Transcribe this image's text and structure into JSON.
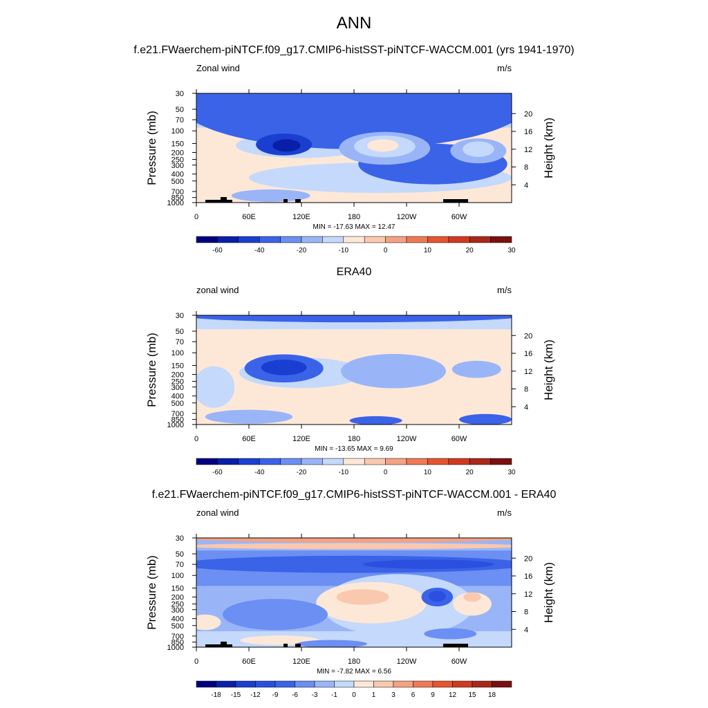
{
  "figure_title": "ANN",
  "chart_data": [
    {
      "type": "heatmap",
      "title": "f.e21.FWaerchem-piNTCF.f09_g17.CMIP6-histSST-piNTCF-WACCM.001 (yrs 1941-1970)",
      "variable_label": "Zonal wind",
      "units_label": "m/s",
      "ylabel": "Pressure (mb)",
      "ylabel_right": "Height (km)",
      "x_ticks": [
        {
          "lon": 0,
          "label": "0"
        },
        {
          "lon": 60,
          "label": "60E"
        },
        {
          "lon": 120,
          "label": "120E"
        },
        {
          "lon": 180,
          "label": "180"
        },
        {
          "lon": 240,
          "label": "120W"
        },
        {
          "lon": 300,
          "label": "60W"
        }
      ],
      "xlim": [
        0,
        360
      ],
      "y_ticks": [
        "30",
        "50",
        "70",
        "100",
        "150",
        "200",
        "250",
        "300",
        "400",
        "500",
        "700",
        "850",
        "1000"
      ],
      "ylim": [
        1000,
        30
      ],
      "height_ticks": [
        "20",
        "16",
        "12",
        "8",
        "4"
      ],
      "stats_text": "MIN = -17.63  MAX =  12.47",
      "colorbar_labels": [
        "-60",
        "-40",
        "-20",
        "-10",
        "0",
        "10",
        "20",
        "30"
      ],
      "features": [
        {
          "lon": 180,
          "p": 40,
          "w": 200,
          "h": 3.0,
          "level": 3
        },
        {
          "lon": 270,
          "p": 290,
          "w": 85,
          "h": 1.3,
          "level": 3
        },
        {
          "lon": 100,
          "p": 155,
          "w": 32,
          "h": 0.7,
          "level": 2
        },
        {
          "lon": 103,
          "p": 160,
          "w": 16,
          "h": 0.4,
          "level": 1
        },
        {
          "lon": 215,
          "p": 175,
          "w": 52,
          "h": 1.05,
          "level": 5
        },
        {
          "lon": 215,
          "p": 165,
          "w": 35,
          "h": 0.7,
          "level": 6
        },
        {
          "lon": 213,
          "p": 160,
          "w": 18,
          "h": 0.4,
          "level": 7
        },
        {
          "lon": 322,
          "p": 190,
          "w": 32,
          "h": 0.8,
          "level": 5
        },
        {
          "lon": 322,
          "p": 180,
          "w": 18,
          "h": 0.5,
          "level": 6
        },
        {
          "lon": 85,
          "p": 800,
          "w": 45,
          "h": 0.4,
          "level": 5
        }
      ]
    },
    {
      "type": "heatmap",
      "title": "ERA40",
      "variable_label": "zonal wind",
      "units_label": "m/s",
      "ylabel": "Pressure (mb)",
      "ylabel_right": "Height (km)",
      "x_ticks": [
        {
          "lon": 0,
          "label": "0"
        },
        {
          "lon": 60,
          "label": "60E"
        },
        {
          "lon": 120,
          "label": "120E"
        },
        {
          "lon": 180,
          "label": "180"
        },
        {
          "lon": 240,
          "label": "120W"
        },
        {
          "lon": 300,
          "label": "60W"
        }
      ],
      "xlim": [
        0,
        360
      ],
      "y_ticks": [
        "30",
        "50",
        "70",
        "100",
        "150",
        "200",
        "250",
        "300",
        "400",
        "500",
        "700",
        "850",
        "1000"
      ],
      "ylim": [
        1000,
        30
      ],
      "height_ticks": [
        "20",
        "16",
        "12",
        "8",
        "4"
      ],
      "stats_text": "MIN = -13.65  MAX =   9.69",
      "colorbar_labels": [
        "-60",
        "-40",
        "-20",
        "-10",
        "0",
        "10",
        "20",
        "30"
      ],
      "features": [
        {
          "lon": 180,
          "p": 30,
          "w": 200,
          "h": 0.45,
          "level": 3
        },
        {
          "lon": 100,
          "p": 165,
          "w": 45,
          "h": 0.9,
          "level": 3
        },
        {
          "lon": 100,
          "p": 160,
          "w": 26,
          "h": 0.5,
          "level": 2
        },
        {
          "lon": 225,
          "p": 180,
          "w": 60,
          "h": 1.1,
          "level": 5
        },
        {
          "lon": 320,
          "p": 170,
          "w": 28,
          "h": 0.55,
          "level": 5
        },
        {
          "lon": 60,
          "p": 780,
          "w": 50,
          "h": 0.45,
          "level": 5
        },
        {
          "lon": 205,
          "p": 880,
          "w": 30,
          "h": 0.28,
          "level": 3
        },
        {
          "lon": 330,
          "p": 850,
          "w": 30,
          "h": 0.35,
          "level": 3
        }
      ]
    },
    {
      "type": "heatmap",
      "title": "f.e21.FWaerchem-piNTCF.f09_g17.CMIP6-histSST-piNTCF-WACCM.001 - ERA40",
      "variable_label": "zonal wind",
      "units_label": "m/s",
      "ylabel": "Pressure (mb)",
      "ylabel_right": "Height (km)",
      "x_ticks": [
        {
          "lon": 0,
          "label": "0"
        },
        {
          "lon": 60,
          "label": "60E"
        },
        {
          "lon": 120,
          "label": "120E"
        },
        {
          "lon": 180,
          "label": "180"
        },
        {
          "lon": 240,
          "label": "120W"
        },
        {
          "lon": 300,
          "label": "60W"
        }
      ],
      "xlim": [
        0,
        360
      ],
      "y_ticks": [
        "30",
        "50",
        "70",
        "100",
        "150",
        "200",
        "250",
        "300",
        "400",
        "500",
        "700",
        "850",
        "1000"
      ],
      "ylim": [
        1000,
        30
      ],
      "height_ticks": [
        "20",
        "16",
        "12",
        "8",
        "4"
      ],
      "stats_text": "MIN =  -7.82  MAX =   6.56",
      "colorbar_labels": [
        "-18",
        "-15",
        "-12",
        "-9",
        "-6",
        "-3",
        "-1",
        "0",
        "1",
        "3",
        "6",
        "9",
        "12",
        "15",
        "18"
      ],
      "features": [
        {
          "lon": 180,
          "p": 30,
          "w": 200,
          "h": 0.28,
          "level": 10
        },
        {
          "lon": 180,
          "p": 39,
          "w": 200,
          "h": 0.2,
          "level": 9
        },
        {
          "lon": 180,
          "p": 70,
          "w": 200,
          "h": 0.55,
          "level": 4
        },
        {
          "lon": 265,
          "p": 70,
          "w": 75,
          "h": 0.3,
          "level": 3
        },
        {
          "lon": 90,
          "p": 350,
          "w": 60,
          "h": 1.0,
          "level": 5
        },
        {
          "lon": 195,
          "p": 220,
          "w": 50,
          "h": 0.9,
          "level": 8
        },
        {
          "lon": 190,
          "p": 200,
          "w": 30,
          "h": 0.5,
          "level": 9
        },
        {
          "lon": 275,
          "p": 200,
          "w": 18,
          "h": 0.6,
          "level": 4
        },
        {
          "lon": 275,
          "p": 195,
          "w": 10,
          "h": 0.35,
          "level": 3
        },
        {
          "lon": 315,
          "p": 250,
          "w": 22,
          "h": 0.75,
          "level": 8
        },
        {
          "lon": 315,
          "p": 200,
          "w": 10,
          "h": 0.3,
          "level": 9
        },
        {
          "lon": 10,
          "p": 450,
          "w": 18,
          "h": 0.5,
          "level": 8
        },
        {
          "lon": 95,
          "p": 800,
          "w": 45,
          "h": 0.3,
          "level": 8
        },
        {
          "lon": 155,
          "p": 900,
          "w": 40,
          "h": 0.25,
          "level": 5
        },
        {
          "lon": 290,
          "p": 650,
          "w": 30,
          "h": 0.35,
          "level": 5
        }
      ]
    }
  ],
  "colors": {
    "absolute_scale": [
      "#000080",
      "#0a1fa8",
      "#1a3fd0",
      "#3a63e8",
      "#6b8ff2",
      "#9ab5f7",
      "#c4d9fb",
      "#fde8d8",
      "#f9c8ae",
      "#f4a283",
      "#ee7a55",
      "#e55530",
      "#cf3a1f",
      "#a8281a",
      "#7a1010"
    ],
    "difference_scale": [
      "#000080",
      "#0a1fa8",
      "#1a3fd0",
      "#2b50e0",
      "#3a63e8",
      "#6b8ff2",
      "#9ab5f7",
      "#c4d9fb",
      "#fde8d8",
      "#f9c8ae",
      "#f4a283",
      "#ee7a55",
      "#e55530",
      "#cf3a1f",
      "#a8281a",
      "#7a1010"
    ],
    "topography": "#000000"
  }
}
